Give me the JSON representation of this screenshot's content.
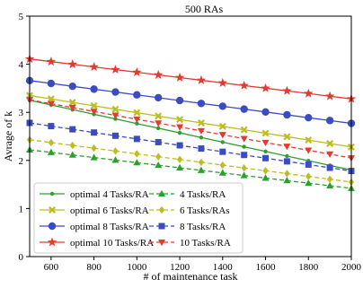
{
  "chart_data": {
    "type": "line",
    "title": "500 RAs",
    "xlabel": "# of maintenance task",
    "ylabel": "Avrage of k",
    "xlim": [
      500,
      2000
    ],
    "ylim": [
      0,
      5
    ],
    "x_ticks": [
      600,
      800,
      1000,
      1200,
      1400,
      1600,
      1800,
      2000
    ],
    "y_ticks": [
      0,
      1,
      2,
      3,
      4,
      5
    ],
    "x": [
      500,
      600,
      700,
      800,
      900,
      1000,
      1100,
      1200,
      1300,
      1400,
      1500,
      1600,
      1700,
      1800,
      1900,
      2000
    ],
    "legend_position": "lower-left",
    "grid": false,
    "series": [
      {
        "name": "optimal 4 Tasks/RA",
        "color": "#2ca02c",
        "dash": "solid",
        "marker": "dot",
        "start": 3.25,
        "end": 1.8
      },
      {
        "name": "optimal 6 Tasks/RA",
        "color": "#bcbd22",
        "dash": "solid",
        "marker": "x-square",
        "start": 3.35,
        "end": 2.28
      },
      {
        "name": "optimal 8 Tasks/RA",
        "color": "#3b4cc0",
        "dash": "solid",
        "marker": "circle",
        "start": 3.66,
        "end": 2.77
      },
      {
        "name": "optimal 10 Tasks/RA",
        "color": "#e03c31",
        "dash": "solid",
        "marker": "star",
        "start": 4.11,
        "end": 3.28
      },
      {
        "name": "4 Tasks/RA",
        "color": "#2ca02c",
        "dash": "dashed",
        "marker": "triangle-up",
        "start": 2.22,
        "end": 1.42
      },
      {
        "name": "6 Tasks/RAs",
        "color": "#bcbd22",
        "dash": "dashed",
        "marker": "diamond",
        "start": 2.43,
        "end": 1.55
      },
      {
        "name": "8 Tasks/RA",
        "color": "#3b4cc0",
        "dash": "dashed",
        "marker": "square",
        "start": 2.78,
        "end": 1.78
      },
      {
        "name": "10 Tasks/RA",
        "color": "#e03c31",
        "dash": "dashed",
        "marker": "triangle-down",
        "start": 3.26,
        "end": 2.05
      }
    ]
  }
}
